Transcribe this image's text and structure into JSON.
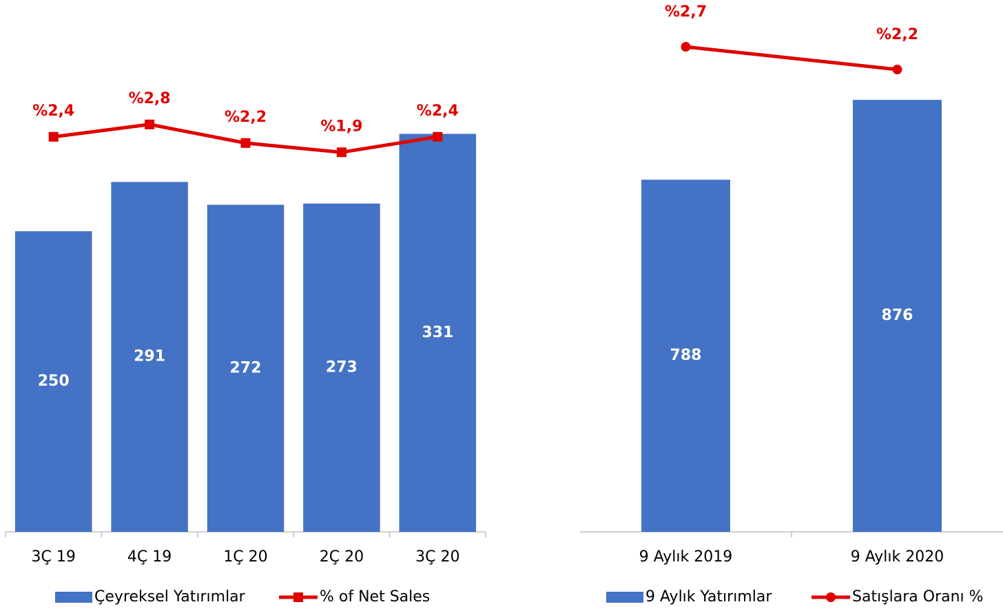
{
  "chart_data": [
    {
      "type": "bar",
      "categories": [
        "3Ç 19",
        "4Ç 19",
        "1Ç 20",
        "2Ç 20",
        "3Ç 20"
      ],
      "ylim": [
        0,
        440
      ],
      "y2lim": [
        -10.36,
        6.73
      ],
      "series": [
        {
          "name": "Çeyreksel Yatırımlar",
          "color": "#4472c4",
          "values": [
            250,
            291,
            272,
            273,
            331
          ]
        },
        {
          "name": "% of Net Sales",
          "color": "#e00000",
          "type": "line",
          "marker": "square",
          "axis": "y2",
          "values": [
            2.4,
            2.8,
            2.2,
            1.9,
            2.4
          ],
          "value_labels": [
            "%2,4",
            "%2,8",
            "%2,2",
            "%1,9",
            "%2,4"
          ]
        }
      ]
    },
    {
      "type": "bar",
      "categories": [
        "9 Aylık 2019",
        "9 Aylık 2020"
      ],
      "ylim": [
        400,
        983
      ],
      "y2lim": [
        -7.98,
        3.67
      ],
      "series": [
        {
          "name": "9 Aylık Yatırımlar",
          "color": "#4472c4",
          "values": [
            788,
            876
          ]
        },
        {
          "name": "Satışlara Oranı %",
          "color": "#e00000",
          "type": "line",
          "marker": "circle",
          "axis": "y2",
          "values": [
            2.7,
            2.2
          ],
          "value_labels": [
            "%2,7",
            "%2,2"
          ]
        }
      ]
    }
  ]
}
